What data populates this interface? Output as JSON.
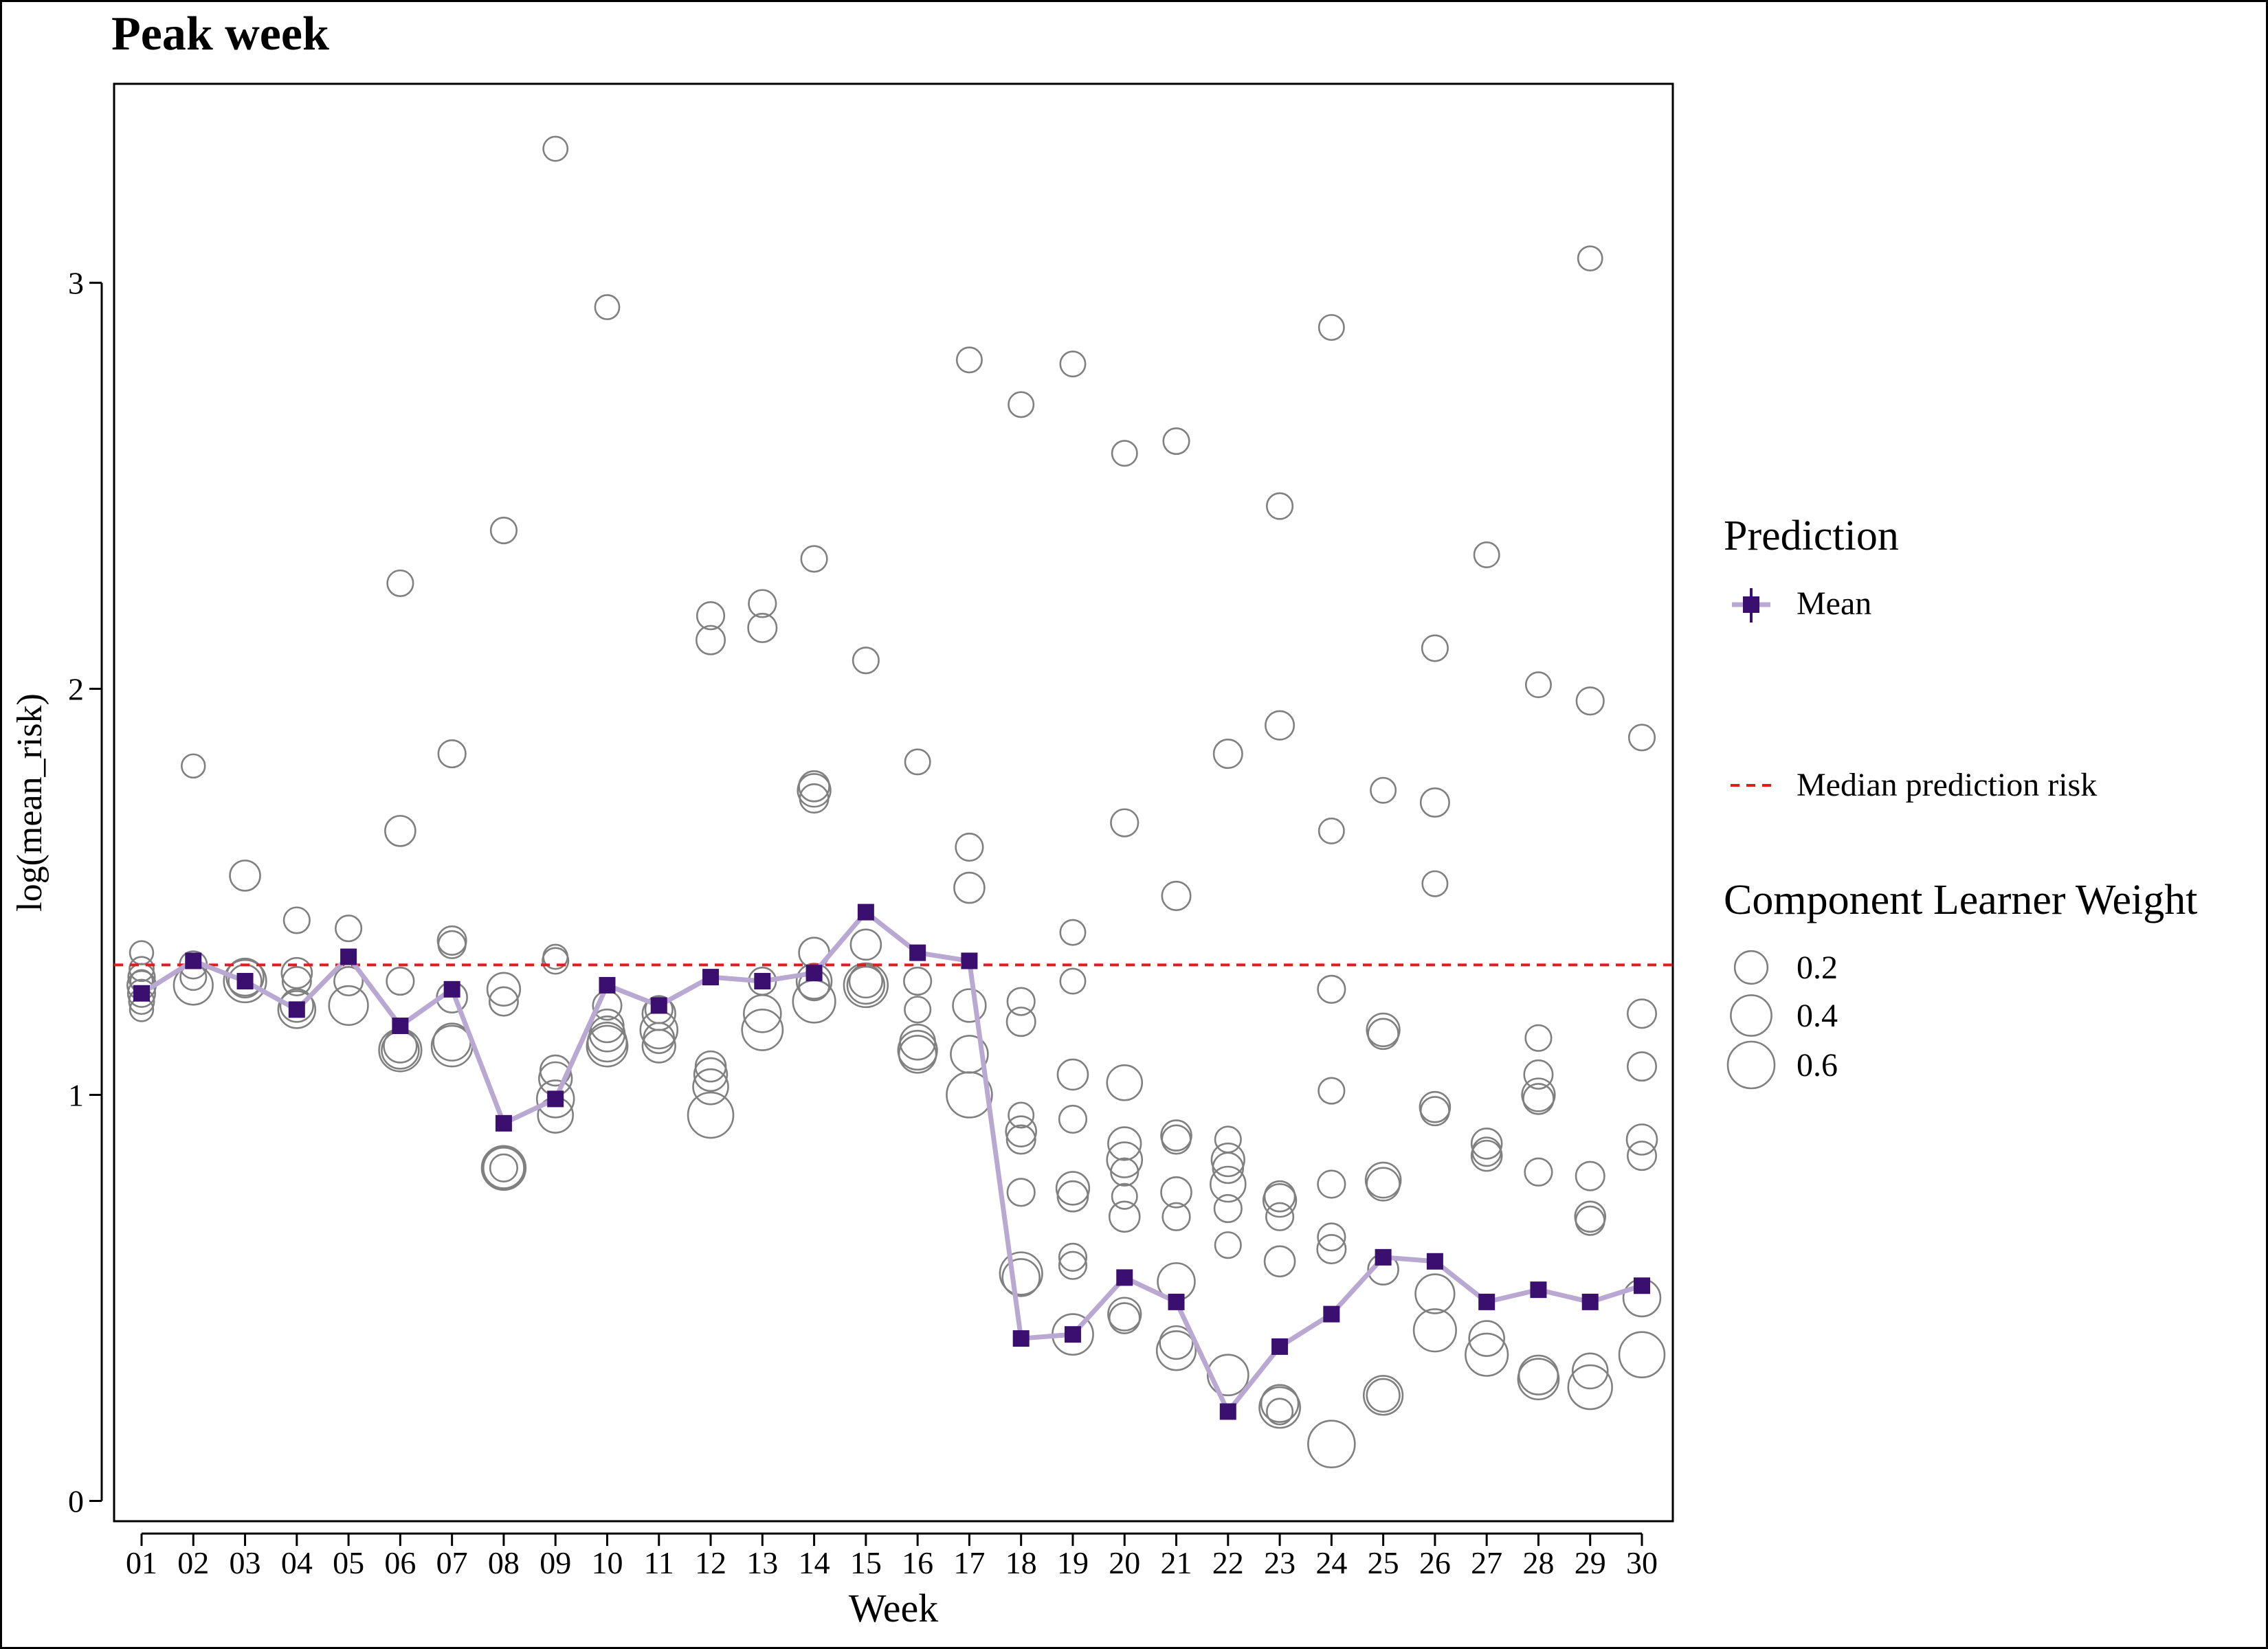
{
  "chart_data": {
    "type": "scatter",
    "title": "Peak week",
    "xlabel": "Week",
    "ylabel": "log(mean_risk)",
    "categories": [
      "01",
      "02",
      "03",
      "04",
      "05",
      "06",
      "07",
      "08",
      "09",
      "10",
      "11",
      "12",
      "13",
      "14",
      "15",
      "16",
      "17",
      "18",
      "19",
      "20",
      "21",
      "22",
      "23",
      "24",
      "25",
      "26",
      "27",
      "28",
      "29",
      "30"
    ],
    "ylim": [
      -0.05,
      3.49
    ],
    "yticks": [
      0,
      1,
      2,
      3
    ],
    "grid": false,
    "median_prediction_risk": 1.32,
    "series": [
      {
        "name": "Mean",
        "type": "line",
        "color": "#3b0f70",
        "line_color": "#b9a8d1",
        "values": [
          1.25,
          1.33,
          1.28,
          1.21,
          1.34,
          1.17,
          1.26,
          0.93,
          0.99,
          1.27,
          1.22,
          1.29,
          1.28,
          1.3,
          1.45,
          1.35,
          1.33,
          0.4,
          0.41,
          0.55,
          0.49,
          0.22,
          0.38,
          0.46,
          0.6,
          0.59,
          0.49,
          0.52,
          0.49,
          0.53
        ]
      },
      {
        "name": "Component Learner Weight",
        "type": "scatter",
        "color": "#808080",
        "points": [
          [
            1,
            1.21,
            0.05
          ],
          [
            1,
            1.23,
            0.07
          ],
          [
            1,
            1.25,
            0.1
          ],
          [
            1,
            1.27,
            0.12
          ],
          [
            1,
            1.29,
            0.09
          ],
          [
            1,
            1.31,
            0.06
          ],
          [
            1,
            1.35,
            0.05
          ],
          [
            1,
            1.28,
            0.04
          ],
          [
            2,
            1.81,
            0.05
          ],
          [
            2,
            1.29,
            0.08
          ],
          [
            2,
            1.27,
            0.35
          ],
          [
            2,
            1.32,
            0.1
          ],
          [
            3,
            1.54,
            0.15
          ],
          [
            3,
            1.29,
            0.3
          ],
          [
            3,
            1.28,
            0.45
          ],
          [
            3,
            1.28,
            0.2
          ],
          [
            4,
            1.43,
            0.08
          ],
          [
            4,
            1.28,
            0.12
          ],
          [
            4,
            1.3,
            0.15
          ],
          [
            4,
            1.22,
            0.2
          ],
          [
            4,
            1.21,
            0.3
          ],
          [
            5,
            1.41,
            0.08
          ],
          [
            5,
            1.28,
            0.12
          ],
          [
            5,
            1.22,
            0.35
          ],
          [
            6,
            2.26,
            0.08
          ],
          [
            6,
            1.65,
            0.15
          ],
          [
            6,
            1.28,
            0.1
          ],
          [
            6,
            1.12,
            0.2
          ],
          [
            6,
            1.11,
            0.3
          ],
          [
            6,
            1.11,
            0.45
          ],
          [
            7,
            1.84,
            0.1
          ],
          [
            7,
            1.38,
            0.12
          ],
          [
            7,
            1.37,
            0.1
          ],
          [
            7,
            1.24,
            0.15
          ],
          [
            7,
            1.13,
            0.3
          ],
          [
            7,
            1.12,
            0.4
          ],
          [
            8,
            2.39,
            0.08
          ],
          [
            8,
            1.26,
            0.2
          ],
          [
            8,
            1.23,
            0.12
          ],
          [
            8,
            0.82,
            0.4
          ],
          [
            8,
            0.82,
            0.5
          ],
          [
            8,
            0.82,
            0.1
          ],
          [
            9,
            3.33,
            0.06
          ],
          [
            9,
            1.33,
            0.08
          ],
          [
            9,
            1.34,
            0.06
          ],
          [
            9,
            1.06,
            0.15
          ],
          [
            9,
            1.04,
            0.2
          ],
          [
            9,
            0.99,
            0.3
          ],
          [
            9,
            0.95,
            0.25
          ],
          [
            10,
            2.94,
            0.06
          ],
          [
            10,
            1.22,
            0.12
          ],
          [
            10,
            1.17,
            0.2
          ],
          [
            10,
            1.15,
            0.25
          ],
          [
            10,
            1.13,
            0.35
          ],
          [
            10,
            1.12,
            0.4
          ],
          [
            11,
            1.2,
            0.2
          ],
          [
            11,
            1.16,
            0.3
          ],
          [
            11,
            1.14,
            0.15
          ],
          [
            11,
            1.12,
            0.2
          ],
          [
            11,
            1.21,
            0.1
          ],
          [
            12,
            2.18,
            0.1
          ],
          [
            12,
            2.12,
            0.12
          ],
          [
            12,
            1.07,
            0.15
          ],
          [
            12,
            1.05,
            0.2
          ],
          [
            12,
            1.02,
            0.25
          ],
          [
            12,
            0.95,
            0.55
          ],
          [
            13,
            2.21,
            0.1
          ],
          [
            13,
            2.15,
            0.12
          ],
          [
            13,
            1.2,
            0.3
          ],
          [
            13,
            1.16,
            0.4
          ],
          [
            13,
            1.28,
            0.1
          ],
          [
            14,
            2.32,
            0.08
          ],
          [
            14,
            1.76,
            0.15
          ],
          [
            14,
            1.75,
            0.2
          ],
          [
            14,
            1.73,
            0.12
          ],
          [
            14,
            1.35,
            0.15
          ],
          [
            14,
            1.28,
            0.25
          ],
          [
            14,
            1.27,
            0.15
          ],
          [
            14,
            1.23,
            0.45
          ],
          [
            15,
            2.07,
            0.08
          ],
          [
            15,
            1.37,
            0.15
          ],
          [
            15,
            1.28,
            0.2
          ],
          [
            15,
            1.27,
            0.5
          ],
          [
            15,
            1.27,
            0.3
          ],
          [
            16,
            1.82,
            0.07
          ],
          [
            16,
            1.21,
            0.08
          ],
          [
            16,
            1.13,
            0.25
          ],
          [
            16,
            1.11,
            0.35
          ],
          [
            16,
            1.1,
            0.3
          ],
          [
            16,
            1.28,
            0.1
          ],
          [
            17,
            2.81,
            0.07
          ],
          [
            17,
            1.61,
            0.1
          ],
          [
            17,
            1.51,
            0.15
          ],
          [
            17,
            1.22,
            0.2
          ],
          [
            17,
            1.1,
            0.3
          ],
          [
            17,
            1.0,
            0.55
          ],
          [
            18,
            2.7,
            0.07
          ],
          [
            18,
            1.23,
            0.1
          ],
          [
            18,
            1.18,
            0.12
          ],
          [
            18,
            0.95,
            0.07
          ],
          [
            18,
            0.91,
            0.15
          ],
          [
            18,
            0.89,
            0.12
          ],
          [
            18,
            0.76,
            0.1
          ],
          [
            18,
            0.56,
            0.45
          ],
          [
            18,
            0.55,
            0.3
          ],
          [
            19,
            2.8,
            0.07
          ],
          [
            19,
            1.4,
            0.07
          ],
          [
            19,
            1.28,
            0.07
          ],
          [
            19,
            1.05,
            0.15
          ],
          [
            19,
            0.94,
            0.1
          ],
          [
            19,
            0.77,
            0.2
          ],
          [
            19,
            0.75,
            0.15
          ],
          [
            19,
            0.6,
            0.1
          ],
          [
            19,
            0.58,
            0.1
          ],
          [
            19,
            0.41,
            0.4
          ],
          [
            20,
            2.58,
            0.07
          ],
          [
            20,
            1.67,
            0.1
          ],
          [
            20,
            1.03,
            0.25
          ],
          [
            20,
            0.88,
            0.2
          ],
          [
            20,
            0.84,
            0.25
          ],
          [
            20,
            0.81,
            0.1
          ],
          [
            20,
            0.75,
            0.07
          ],
          [
            20,
            0.7,
            0.15
          ],
          [
            20,
            0.46,
            0.2
          ],
          [
            20,
            0.45,
            0.15
          ],
          [
            21,
            2.61,
            0.08
          ],
          [
            21,
            1.49,
            0.12
          ],
          [
            21,
            0.9,
            0.15
          ],
          [
            21,
            0.89,
            0.12
          ],
          [
            21,
            0.76,
            0.15
          ],
          [
            21,
            0.7,
            0.1
          ],
          [
            21,
            0.54,
            0.3
          ],
          [
            21,
            0.39,
            0.2
          ],
          [
            21,
            0.37,
            0.35
          ],
          [
            22,
            1.84,
            0.12
          ],
          [
            22,
            0.89,
            0.08
          ],
          [
            22,
            0.84,
            0.2
          ],
          [
            22,
            0.82,
            0.15
          ],
          [
            22,
            0.78,
            0.25
          ],
          [
            22,
            0.72,
            0.1
          ],
          [
            22,
            0.63,
            0.08
          ],
          [
            22,
            0.31,
            0.4
          ],
          [
            23,
            2.45,
            0.08
          ],
          [
            23,
            1.91,
            0.12
          ],
          [
            23,
            0.75,
            0.15
          ],
          [
            23,
            0.74,
            0.2
          ],
          [
            23,
            0.7,
            0.1
          ],
          [
            23,
            0.59,
            0.15
          ],
          [
            23,
            0.24,
            0.3
          ],
          [
            23,
            0.23,
            0.4
          ],
          [
            23,
            0.22,
            0.08
          ],
          [
            24,
            2.89,
            0.07
          ],
          [
            24,
            1.65,
            0.07
          ],
          [
            24,
            1.26,
            0.1
          ],
          [
            24,
            1.01,
            0.08
          ],
          [
            24,
            0.78,
            0.1
          ],
          [
            24,
            0.65,
            0.1
          ],
          [
            24,
            0.62,
            0.12
          ],
          [
            24,
            0.14,
            0.6
          ],
          [
            25,
            1.75,
            0.07
          ],
          [
            25,
            1.16,
            0.2
          ],
          [
            25,
            1.15,
            0.15
          ],
          [
            25,
            0.79,
            0.25
          ],
          [
            25,
            0.78,
            0.2
          ],
          [
            25,
            0.57,
            0.15
          ],
          [
            25,
            0.26,
            0.35
          ],
          [
            25,
            0.26,
            0.2
          ],
          [
            26,
            2.1,
            0.08
          ],
          [
            26,
            1.72,
            0.12
          ],
          [
            26,
            1.52,
            0.07
          ],
          [
            26,
            0.97,
            0.15
          ],
          [
            26,
            0.96,
            0.12
          ],
          [
            26,
            0.51,
            0.35
          ],
          [
            26,
            0.42,
            0.45
          ],
          [
            27,
            2.33,
            0.07
          ],
          [
            27,
            0.88,
            0.15
          ],
          [
            27,
            0.86,
            0.12
          ],
          [
            27,
            0.85,
            0.15
          ],
          [
            27,
            0.4,
            0.25
          ],
          [
            27,
            0.36,
            0.45
          ],
          [
            28,
            2.01,
            0.07
          ],
          [
            28,
            1.14,
            0.08
          ],
          [
            28,
            1.05,
            0.12
          ],
          [
            28,
            1.0,
            0.2
          ],
          [
            28,
            0.99,
            0.15
          ],
          [
            28,
            0.81,
            0.1
          ],
          [
            28,
            0.31,
            0.35
          ],
          [
            28,
            0.3,
            0.4
          ],
          [
            29,
            3.06,
            0.06
          ],
          [
            29,
            1.97,
            0.1
          ],
          [
            29,
            0.8,
            0.12
          ],
          [
            29,
            0.7,
            0.15
          ],
          [
            29,
            0.69,
            0.12
          ],
          [
            29,
            0.32,
            0.25
          ],
          [
            29,
            0.28,
            0.5
          ],
          [
            30,
            1.88,
            0.08
          ],
          [
            30,
            1.2,
            0.12
          ],
          [
            30,
            1.07,
            0.12
          ],
          [
            30,
            0.89,
            0.15
          ],
          [
            30,
            0.85,
            0.12
          ],
          [
            30,
            0.5,
            0.3
          ],
          [
            30,
            0.36,
            0.55
          ]
        ]
      }
    ],
    "legend": {
      "placement": "right",
      "prediction_title": "Prediction",
      "mean_label": "Mean",
      "median_label": "Median prediction risk",
      "weight_title": "Component Learner Weight",
      "weight_sizes": [
        0.2,
        0.4,
        0.6
      ],
      "weight_labels": [
        "0.2",
        "0.4",
        "0.6"
      ]
    },
    "colors": {
      "mean": "#3b0f70",
      "mean_line": "#b9a8d1",
      "median_line": "#e41a1c",
      "points": "#808080"
    }
  }
}
